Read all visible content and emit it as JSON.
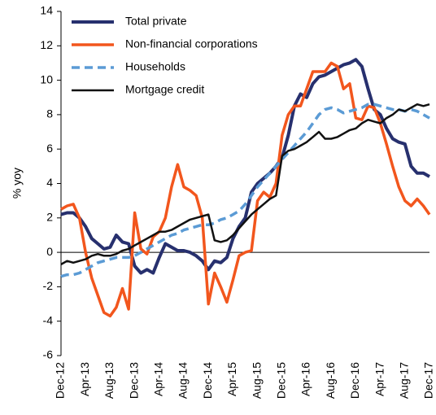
{
  "chart_data": {
    "type": "line",
    "ylabel": "% yoy",
    "categories": [
      "Dec-12",
      null,
      null,
      null,
      "Apr-13",
      null,
      null,
      null,
      "Aug-13",
      null,
      null,
      null,
      "Dec-13",
      null,
      null,
      null,
      "Apr-14",
      null,
      null,
      null,
      "Aug-14",
      null,
      null,
      null,
      "Dec-14",
      null,
      null,
      null,
      "Apr-15",
      null,
      null,
      null,
      "Aug-15",
      null,
      null,
      null,
      "Dec-15",
      null,
      null,
      null,
      "Apr-16",
      null,
      null,
      null,
      "Aug-16",
      null,
      null,
      null,
      "Dec-16",
      null,
      null,
      null,
      "Apr-17",
      null,
      null,
      null,
      "Aug-17",
      null,
      null,
      null,
      "Dec-17"
    ],
    "series": [
      {
        "name": "Total private",
        "color": "#27306e",
        "width": 4,
        "dashed": false,
        "values": [
          2.2,
          2.3,
          2.3,
          2.0,
          1.5,
          0.8,
          0.5,
          0.2,
          0.3,
          1.0,
          0.6,
          0.5,
          -0.8,
          -1.2,
          -1.0,
          -1.2,
          -0.3,
          0.5,
          0.3,
          0.1,
          0.1,
          0.0,
          -0.2,
          -0.5,
          -1.0,
          -0.5,
          -0.6,
          -0.3,
          0.8,
          1.5,
          2.0,
          3.5,
          4.0,
          4.3,
          4.6,
          5.0,
          5.5,
          6.8,
          8.5,
          9.2,
          9.0,
          9.8,
          10.2,
          10.3,
          10.5,
          10.7,
          10.9,
          11.0,
          11.2,
          10.8,
          9.5,
          8.3,
          8.0,
          7.2,
          6.6,
          6.4,
          6.3,
          5.0,
          4.6,
          4.6,
          4.4
        ]
      },
      {
        "name": "Non-financial corporations",
        "color": "#f2561d",
        "width": 3.5,
        "dashed": false,
        "values": [
          2.5,
          2.7,
          2.8,
          2.0,
          0.0,
          -1.5,
          -2.5,
          -3.5,
          -3.7,
          -3.2,
          -2.1,
          -3.3,
          2.3,
          0.2,
          -0.1,
          0.9,
          1.2,
          2.0,
          3.8,
          5.1,
          3.8,
          3.6,
          3.3,
          2.0,
          -3.0,
          -1.2,
          -2.0,
          -2.9,
          -1.6,
          -0.2,
          0.0,
          0.1,
          3.0,
          3.5,
          3.2,
          4.0,
          6.8,
          8.0,
          8.5,
          8.5,
          9.5,
          10.5,
          10.5,
          10.5,
          11.0,
          10.8,
          9.5,
          9.8,
          7.8,
          7.7,
          8.5,
          8.4,
          7.5,
          6.3,
          5.0,
          3.8,
          3.0,
          2.7,
          3.1,
          2.7,
          2.2
        ]
      },
      {
        "name": "Households",
        "color": "#5b9bd5",
        "width": 3.5,
        "dashed": true,
        "values": [
          -1.4,
          -1.3,
          -1.3,
          -1.2,
          -1.0,
          -0.8,
          -0.6,
          -0.5,
          -0.4,
          -0.3,
          -0.3,
          -0.3,
          -0.2,
          0.0,
          0.2,
          0.4,
          0.6,
          0.8,
          1.0,
          1.1,
          1.3,
          1.4,
          1.5,
          1.6,
          1.6,
          1.7,
          1.9,
          2.0,
          2.2,
          2.4,
          2.8,
          3.3,
          3.8,
          4.2,
          4.6,
          5.0,
          5.4,
          5.8,
          6.2,
          6.6,
          7.0,
          7.5,
          8.0,
          8.3,
          8.4,
          8.3,
          8.1,
          8.2,
          8.3,
          8.4,
          8.6,
          8.6,
          8.5,
          8.4,
          8.3,
          8.3,
          8.2,
          8.3,
          8.2,
          8.0,
          7.8
        ]
      },
      {
        "name": "Mortgage credit",
        "color": "#111111",
        "width": 2.5,
        "dashed": false,
        "values": [
          -0.7,
          -0.5,
          -0.6,
          -0.5,
          -0.4,
          -0.2,
          -0.1,
          -0.2,
          -0.2,
          -0.1,
          0.1,
          0.2,
          0.4,
          0.6,
          0.8,
          1.0,
          1.2,
          1.2,
          1.3,
          1.5,
          1.7,
          1.9,
          2.0,
          2.1,
          2.2,
          0.7,
          0.6,
          0.7,
          1.0,
          1.4,
          1.8,
          2.2,
          2.5,
          2.8,
          3.1,
          3.3,
          5.6,
          5.9,
          6.0,
          6.2,
          6.4,
          6.7,
          7.0,
          6.6,
          6.6,
          6.7,
          6.9,
          7.1,
          7.2,
          7.5,
          7.7,
          7.6,
          7.5,
          7.8,
          8.0,
          8.3,
          8.2,
          8.4,
          8.6,
          8.5,
          8.6
        ]
      }
    ],
    "ylim": [
      -6,
      14
    ],
    "yticks": [
      -6,
      -4,
      -2,
      0,
      2,
      4,
      6,
      8,
      10,
      12,
      14
    ],
    "legend": "top-left"
  }
}
